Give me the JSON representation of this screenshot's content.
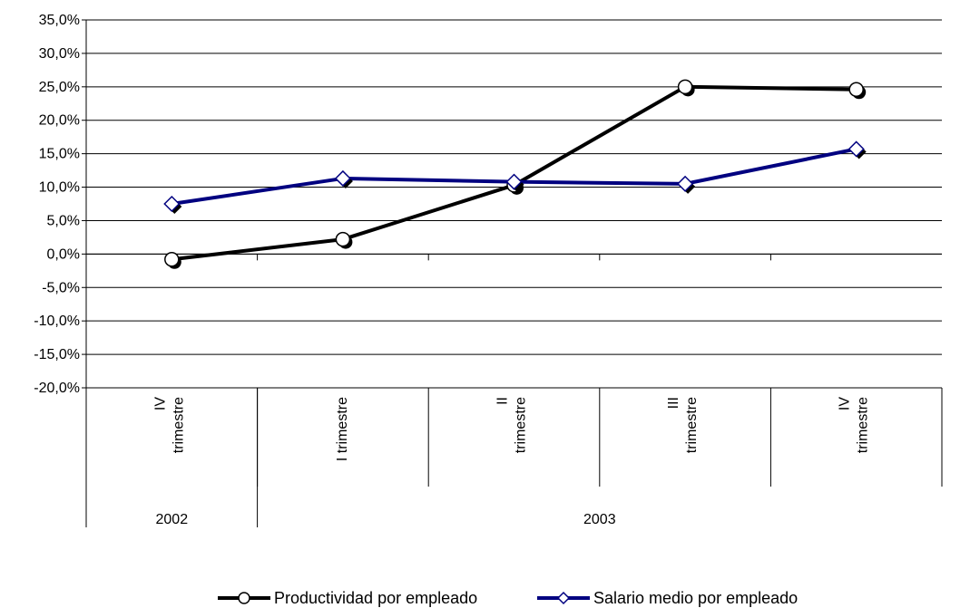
{
  "chart_data": {
    "type": "line",
    "title": "",
    "xlabel": "",
    "ylabel": "",
    "ylim": [
      -20,
      35
    ],
    "ytick_step": 5,
    "y_tick_labels": [
      "35,0%",
      "30,0%",
      "25,0%",
      "20,0%",
      "15,0%",
      "10,0%",
      "5,0%",
      "0,0%",
      "-5,0%",
      "-10,0%",
      "-15,0%",
      "-20,0%"
    ],
    "categories": [
      {
        "line1": "IV",
        "line2": "trimestre"
      },
      {
        "line1": "I trimestre",
        "line2": ""
      },
      {
        "line1": "II",
        "line2": "trimestre"
      },
      {
        "line1": "III",
        "line2": "trimestre"
      },
      {
        "line1": "IV",
        "line2": "trimestre"
      }
    ],
    "groups": [
      {
        "label": "2002",
        "span": [
          0,
          0
        ]
      },
      {
        "label": "2003",
        "span": [
          1,
          4
        ]
      }
    ],
    "series": [
      {
        "name": "Productividad por empleado",
        "values": [
          -0.8,
          2.2,
          10.3,
          25.0,
          24.6
        ],
        "color": "#000000",
        "marker": "circle"
      },
      {
        "name": "Salario medio por empleado",
        "values": [
          7.5,
          11.3,
          10.8,
          10.5,
          15.7
        ],
        "color": "#000080",
        "marker": "diamond"
      }
    ],
    "grid": true,
    "legend": "bottom"
  }
}
